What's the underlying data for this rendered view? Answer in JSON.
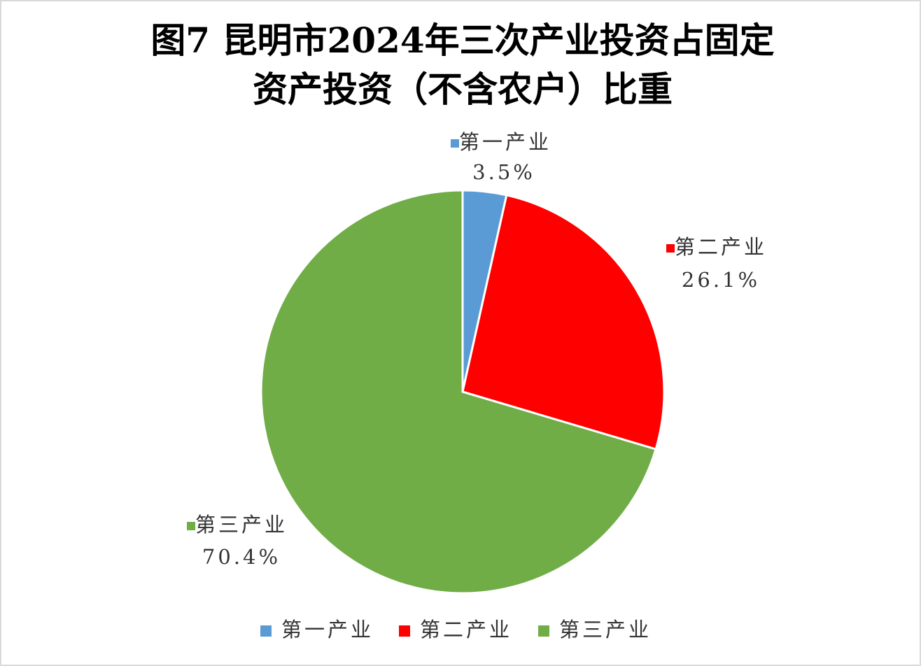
{
  "chart_data": {
    "type": "pie",
    "title": [
      "图7 昆明市2024年三次产业投资占固定",
      "资产投资（不含农户）比重"
    ],
    "categories": [
      "第一产业",
      "第二产业",
      "第三产业"
    ],
    "values": [
      3.5,
      26.1,
      70.4
    ],
    "value_labels": [
      "3.5%",
      "26.1%",
      "70.4%"
    ],
    "colors": [
      "#5b9bd5",
      "#ff0000",
      "#70ad47"
    ],
    "legend": "bottom"
  }
}
